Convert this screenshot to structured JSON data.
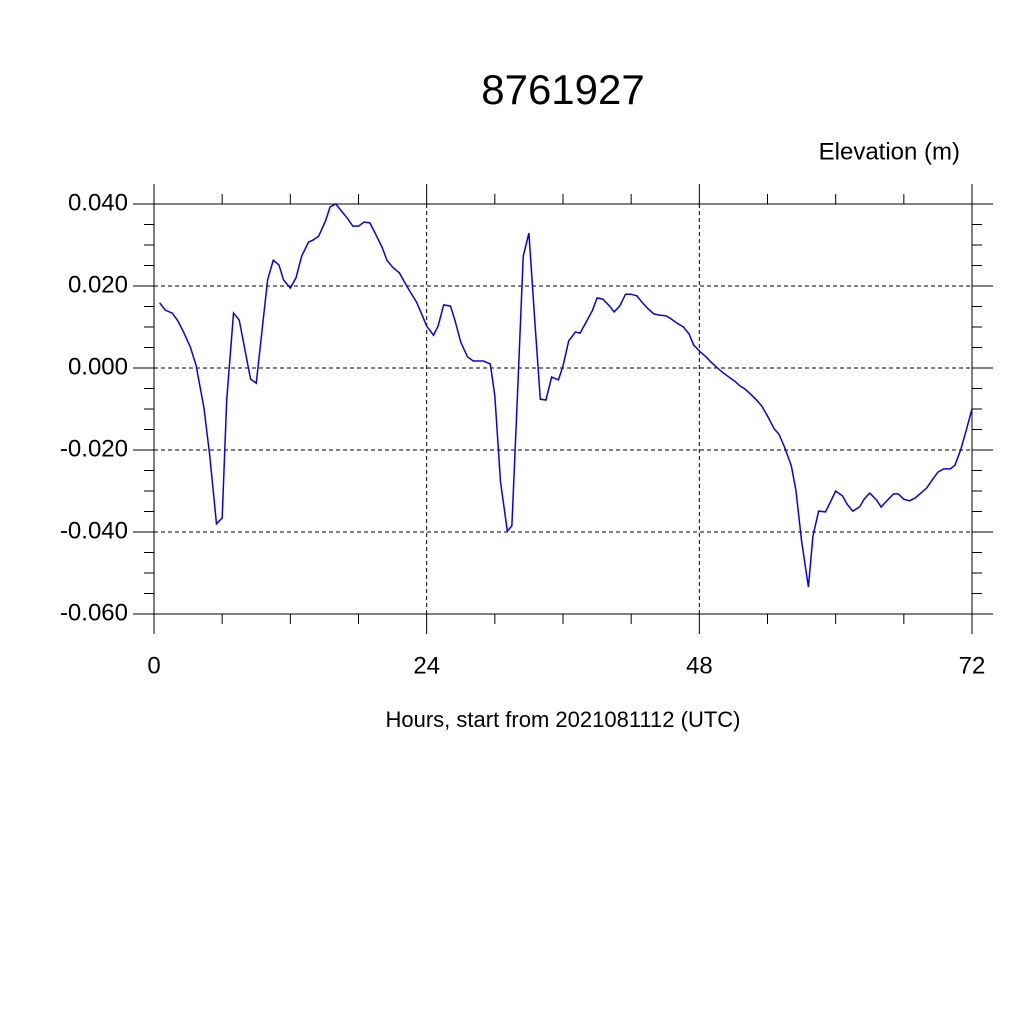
{
  "chart_data": {
    "type": "line",
    "title": "8761927",
    "subtitle": "Elevation (m)",
    "x_label": "Hours, start from 2021081112 (UTC)",
    "xlim": [
      0,
      72
    ],
    "ylim": [
      -0.06,
      0.04
    ],
    "xticks": [
      0,
      24,
      48,
      72
    ],
    "xminorticks": [
      6,
      12,
      18,
      30,
      36,
      42,
      54,
      60,
      66
    ],
    "yticks": [
      {
        "value": -0.06,
        "label": "-0.060"
      },
      {
        "value": -0.04,
        "label": "-0.040"
      },
      {
        "value": -0.02,
        "label": "-0.020"
      },
      {
        "value": 0,
        "label": "0.000"
      },
      {
        "value": 0.02,
        "label": "0.020"
      },
      {
        "value": 0.04,
        "label": "0.040"
      }
    ],
    "yminorticks": [
      -0.055,
      -0.05,
      -0.045,
      -0.035,
      -0.03,
      -0.025,
      -0.015,
      -0.01,
      -0.005,
      0.005,
      0.01,
      0.015,
      0.025,
      0.03,
      0.035
    ],
    "grid": true,
    "series": [
      {
        "color": "#0000ff",
        "x": [
          0.5,
          1.0,
          1.6,
          2.1,
          2.6,
          3.2,
          3.7,
          4.4,
          4.9,
          5.5,
          6.0,
          6.4,
          7.0,
          7.5,
          8.5,
          9.0,
          10.0,
          10.5,
          11.0,
          11.4,
          12.0,
          12.5,
          13.0,
          13.6,
          14.0,
          14.5,
          15.1,
          15.5,
          16.0,
          16.5,
          17.0,
          17.5,
          18.0,
          18.5,
          19.0,
          19.5,
          20.1,
          20.5,
          21.0,
          21.6,
          22.1,
          22.5,
          23.1,
          23.6,
          24.0,
          24.6,
          25.0,
          25.5,
          26.1,
          26.5,
          27.0,
          27.6,
          28.1,
          28.5,
          29.0,
          29.6,
          30.0,
          30.5,
          31.1,
          31.5,
          32.0,
          32.5,
          33.0,
          33.5,
          34.0,
          34.5,
          35.0,
          35.6,
          36.0,
          36.5,
          37.1,
          37.5,
          38.0,
          38.6,
          39.0,
          39.5,
          40.1,
          40.5,
          41.0,
          41.5,
          42.0,
          42.5,
          43.0,
          43.5,
          44.0,
          44.5,
          45.1,
          45.5,
          46.0,
          46.6,
          47.1,
          47.5,
          48.1,
          48.6,
          49.0,
          49.6,
          50.1,
          50.5,
          51.1,
          51.6,
          52.0,
          52.6,
          53.1,
          53.5,
          54.0,
          54.6,
          55.0,
          55.5,
          56.1,
          56.5,
          57.0,
          57.6,
          58.0,
          58.5,
          59.1,
          59.5,
          60.0,
          60.6,
          61.0,
          61.5,
          62.1,
          62.5,
          63.0,
          63.6,
          64.0,
          64.5,
          65.1,
          65.5,
          66.0,
          66.5,
          67.0,
          67.5,
          68.0,
          68.5,
          69.0,
          69.5,
          70.1,
          70.5,
          71.0,
          71.5,
          72.0
        ],
        "values": [
          0.0159,
          0.0141,
          0.0134,
          0.0115,
          0.0088,
          0.0051,
          0.0007,
          -0.0098,
          -0.0212,
          -0.038,
          -0.0366,
          -0.0078,
          0.0134,
          0.0117,
          -0.0027,
          -0.0037,
          0.0215,
          0.0263,
          0.0251,
          0.0215,
          0.0195,
          0.022,
          0.0273,
          0.0307,
          0.0312,
          0.0322,
          0.0359,
          0.0393,
          0.04,
          0.0383,
          0.0366,
          0.0346,
          0.0346,
          0.0356,
          0.0354,
          0.0327,
          0.0293,
          0.0263,
          0.0246,
          0.0232,
          0.0207,
          0.0188,
          0.0161,
          0.0129,
          0.0102,
          0.008,
          0.0102,
          0.0154,
          0.0151,
          0.0115,
          0.0063,
          0.0027,
          0.0017,
          0.0017,
          0.0017,
          0.001,
          -0.0068,
          -0.0278,
          -0.0398,
          -0.0385,
          -0.0061,
          0.0273,
          0.0329,
          0.0122,
          -0.0076,
          -0.0078,
          -0.0022,
          -0.0029,
          0.0005,
          0.0066,
          0.0088,
          0.0085,
          0.011,
          0.0141,
          0.0171,
          0.0168,
          0.0151,
          0.0137,
          0.0151,
          0.018,
          0.018,
          0.0176,
          0.0159,
          0.0144,
          0.0132,
          0.0129,
          0.0127,
          0.012,
          0.011,
          0.01,
          0.0083,
          0.0056,
          0.0039,
          0.0027,
          0.0015,
          0.0,
          -0.0012,
          -0.002,
          -0.0032,
          -0.0044,
          -0.0051,
          -0.0066,
          -0.008,
          -0.0093,
          -0.0117,
          -0.0149,
          -0.0161,
          -0.0193,
          -0.0239,
          -0.0298,
          -0.0422,
          -0.0534,
          -0.041,
          -0.0349,
          -0.0351,
          -0.0329,
          -0.03,
          -0.0312,
          -0.0332,
          -0.0349,
          -0.0339,
          -0.032,
          -0.0305,
          -0.0322,
          -0.0339,
          -0.0324,
          -0.0307,
          -0.0307,
          -0.032,
          -0.0324,
          -0.0317,
          -0.0305,
          -0.0293,
          -0.0273,
          -0.0254,
          -0.0246,
          -0.0246,
          -0.0237,
          -0.02,
          -0.0151,
          -0.01
        ]
      }
    ]
  }
}
